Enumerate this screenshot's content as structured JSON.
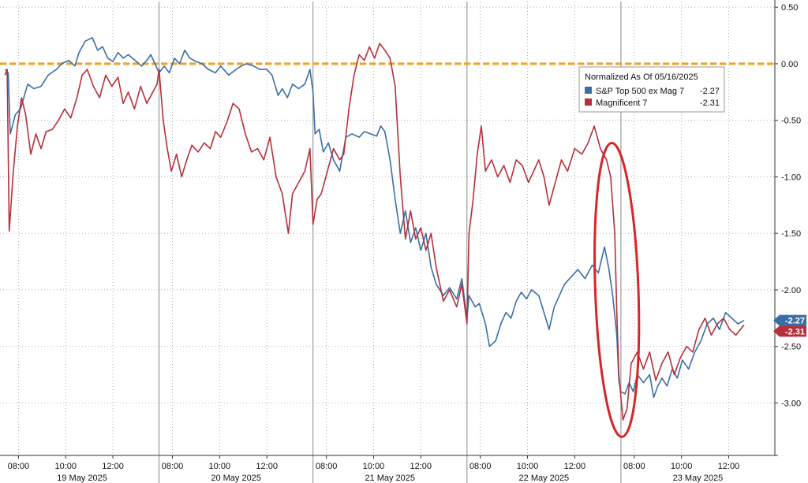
{
  "chart_data": {
    "type": "line",
    "title": "",
    "xlabel": "",
    "ylabel": "",
    "ylim": [
      -3.45,
      0.55
    ],
    "y_ticks": [
      0.5,
      0.0,
      -0.5,
      -1.0,
      -1.5,
      -2.0,
      -2.5,
      -3.0
    ],
    "y_tick_labels": [
      "0.50",
      "0.00",
      "-0.50",
      "-1.00",
      "-1.50",
      "-2.00",
      "-2.50",
      "-3.00"
    ],
    "x_time_ticks": [
      {
        "label": "08:00",
        "t": 0.13
      },
      {
        "label": "10:00",
        "t": 0.59
      },
      {
        "label": "12:00",
        "t": 1.05
      },
      {
        "label": "08:00",
        "t": 1.63
      },
      {
        "label": "10:00",
        "t": 2.09
      },
      {
        "label": "12:00",
        "t": 2.55
      },
      {
        "label": "08:00",
        "t": 3.13
      },
      {
        "label": "10:00",
        "t": 3.59
      },
      {
        "label": "12:00",
        "t": 4.05
      },
      {
        "label": "08:00",
        "t": 4.63
      },
      {
        "label": "10:00",
        "t": 5.09
      },
      {
        "label": "12:00",
        "t": 5.55
      },
      {
        "label": "08:00",
        "t": 6.13
      },
      {
        "label": "10:00",
        "t": 6.59
      },
      {
        "label": "12:00",
        "t": 7.05
      }
    ],
    "days": [
      {
        "label": "19 May 2025",
        "start": 0.0,
        "end": 1.5
      },
      {
        "label": "20 May 2025",
        "start": 1.5,
        "end": 3.0
      },
      {
        "label": "21 May 2025",
        "start": 3.0,
        "end": 4.5
      },
      {
        "label": "22 May 2025",
        "start": 4.5,
        "end": 6.0
      },
      {
        "label": "23 May 2025",
        "start": 6.0,
        "end": 7.5
      }
    ],
    "x_range": [
      -0.05,
      7.5
    ],
    "grid": true,
    "legend_position": "top-right",
    "legend_title": "Normalized As Of 05/16/2025",
    "reference_line": {
      "value": 0.0,
      "color": "#f0a324"
    },
    "annotation": {
      "type": "ellipse",
      "t_center": 5.96,
      "y_center": -2.0,
      "t_radius": 0.21,
      "y_radius": 1.3,
      "color": "#d62728"
    },
    "series": [
      {
        "name": "S&P Top 500 ex Mag 7",
        "last_value_label": "-2.27",
        "color": "#3a6fa6",
        "points": [
          [
            0.0,
            -0.05
          ],
          [
            0.03,
            -0.08
          ],
          [
            0.05,
            -0.62
          ],
          [
            0.1,
            -0.45
          ],
          [
            0.15,
            -0.4
          ],
          [
            0.22,
            -0.18
          ],
          [
            0.28,
            -0.22
          ],
          [
            0.35,
            -0.2
          ],
          [
            0.42,
            -0.1
          ],
          [
            0.5,
            -0.05
          ],
          [
            0.55,
            0.0
          ],
          [
            0.62,
            0.03
          ],
          [
            0.68,
            -0.02
          ],
          [
            0.72,
            0.1
          ],
          [
            0.78,
            0.2
          ],
          [
            0.85,
            0.23
          ],
          [
            0.9,
            0.12
          ],
          [
            0.95,
            0.15
          ],
          [
            1.0,
            0.05
          ],
          [
            1.05,
            0.02
          ],
          [
            1.1,
            0.1
          ],
          [
            1.15,
            0.05
          ],
          [
            1.2,
            0.08
          ],
          [
            1.28,
            0.02
          ],
          [
            1.33,
            -0.02
          ],
          [
            1.38,
            0.03
          ],
          [
            1.42,
            0.08
          ],
          [
            1.46,
            0.0
          ],
          [
            1.5,
            -0.08
          ],
          [
            1.55,
            -0.02
          ],
          [
            1.6,
            -0.08
          ],
          [
            1.65,
            0.05
          ],
          [
            1.7,
            0.0
          ],
          [
            1.75,
            0.12
          ],
          [
            1.8,
            0.05
          ],
          [
            1.86,
            0.02
          ],
          [
            1.92,
            0.0
          ],
          [
            1.98,
            -0.05
          ],
          [
            2.05,
            -0.08
          ],
          [
            2.1,
            -0.02
          ],
          [
            2.18,
            -0.1
          ],
          [
            2.25,
            -0.05
          ],
          [
            2.3,
            -0.02
          ],
          [
            2.35,
            0.0
          ],
          [
            2.42,
            -0.02
          ],
          [
            2.48,
            -0.05
          ],
          [
            2.55,
            -0.05
          ],
          [
            2.6,
            -0.1
          ],
          [
            2.66,
            -0.28
          ],
          [
            2.7,
            -0.22
          ],
          [
            2.75,
            -0.3
          ],
          [
            2.8,
            -0.18
          ],
          [
            2.86,
            -0.22
          ],
          [
            2.92,
            -0.18
          ],
          [
            2.97,
            -0.05
          ],
          [
            3.0,
            -0.25
          ],
          [
            3.02,
            -0.62
          ],
          [
            3.06,
            -0.58
          ],
          [
            3.1,
            -0.78
          ],
          [
            3.15,
            -0.7
          ],
          [
            3.2,
            -0.85
          ],
          [
            3.26,
            -0.95
          ],
          [
            3.32,
            -0.65
          ],
          [
            3.38,
            -0.62
          ],
          [
            3.45,
            -0.65
          ],
          [
            3.5,
            -0.6
          ],
          [
            3.56,
            -0.62
          ],
          [
            3.62,
            -0.64
          ],
          [
            3.66,
            -0.55
          ],
          [
            3.7,
            -0.6
          ],
          [
            3.75,
            -0.85
          ],
          [
            3.8,
            -1.2
          ],
          [
            3.85,
            -1.5
          ],
          [
            3.9,
            -1.3
          ],
          [
            3.95,
            -1.58
          ],
          [
            4.0,
            -1.45
          ],
          [
            4.05,
            -1.65
          ],
          [
            4.1,
            -1.5
          ],
          [
            4.15,
            -1.8
          ],
          [
            4.2,
            -1.95
          ],
          [
            4.27,
            -2.05
          ],
          [
            4.33,
            -1.98
          ],
          [
            4.4,
            -2.08
          ],
          [
            4.45,
            -1.9
          ],
          [
            4.5,
            -2.25
          ],
          [
            4.52,
            -2.05
          ],
          [
            4.58,
            -2.15
          ],
          [
            4.62,
            -2.12
          ],
          [
            4.68,
            -2.3
          ],
          [
            4.72,
            -2.5
          ],
          [
            4.78,
            -2.45
          ],
          [
            4.83,
            -2.3
          ],
          [
            4.88,
            -2.2
          ],
          [
            4.93,
            -2.25
          ],
          [
            4.98,
            -2.1
          ],
          [
            5.03,
            -2.02
          ],
          [
            5.08,
            -2.08
          ],
          [
            5.13,
            -2.0
          ],
          [
            5.2,
            -2.05
          ],
          [
            5.25,
            -2.2
          ],
          [
            5.3,
            -2.35
          ],
          [
            5.35,
            -2.15
          ],
          [
            5.4,
            -2.05
          ],
          [
            5.45,
            -1.95
          ],
          [
            5.52,
            -1.88
          ],
          [
            5.58,
            -1.82
          ],
          [
            5.65,
            -1.9
          ],
          [
            5.72,
            -1.78
          ],
          [
            5.78,
            -1.85
          ],
          [
            5.84,
            -1.62
          ],
          [
            5.88,
            -1.8
          ],
          [
            5.92,
            -2.05
          ],
          [
            5.96,
            -2.4
          ],
          [
            5.98,
            -2.8
          ],
          [
            6.0,
            -2.9
          ],
          [
            6.04,
            -2.92
          ],
          [
            6.08,
            -2.82
          ],
          [
            6.12,
            -2.9
          ],
          [
            6.16,
            -2.75
          ],
          [
            6.22,
            -2.82
          ],
          [
            6.28,
            -2.75
          ],
          [
            6.32,
            -2.95
          ],
          [
            6.36,
            -2.85
          ],
          [
            6.4,
            -2.78
          ],
          [
            6.45,
            -2.85
          ],
          [
            6.5,
            -2.7
          ],
          [
            6.55,
            -2.78
          ],
          [
            6.6,
            -2.62
          ],
          [
            6.66,
            -2.7
          ],
          [
            6.72,
            -2.55
          ],
          [
            6.78,
            -2.45
          ],
          [
            6.84,
            -2.3
          ],
          [
            6.9,
            -2.25
          ],
          [
            6.96,
            -2.35
          ],
          [
            7.02,
            -2.2
          ],
          [
            7.08,
            -2.25
          ],
          [
            7.14,
            -2.3
          ],
          [
            7.2,
            -2.27
          ]
        ]
      },
      {
        "name": "Magnificent 7",
        "last_value_label": "-2.31",
        "color": "#b5303a",
        "points": [
          [
            0.0,
            -0.1
          ],
          [
            0.02,
            -0.05
          ],
          [
            0.04,
            -1.48
          ],
          [
            0.08,
            -0.95
          ],
          [
            0.12,
            -0.55
          ],
          [
            0.16,
            -0.3
          ],
          [
            0.2,
            -0.45
          ],
          [
            0.25,
            -0.8
          ],
          [
            0.3,
            -0.62
          ],
          [
            0.35,
            -0.75
          ],
          [
            0.4,
            -0.6
          ],
          [
            0.46,
            -0.58
          ],
          [
            0.52,
            -0.5
          ],
          [
            0.58,
            -0.4
          ],
          [
            0.64,
            -0.48
          ],
          [
            0.7,
            -0.3
          ],
          [
            0.75,
            -0.1
          ],
          [
            0.8,
            -0.05
          ],
          [
            0.86,
            -0.2
          ],
          [
            0.92,
            -0.3
          ],
          [
            0.98,
            -0.1
          ],
          [
            1.04,
            -0.2
          ],
          [
            1.1,
            -0.12
          ],
          [
            1.15,
            -0.35
          ],
          [
            1.2,
            -0.25
          ],
          [
            1.26,
            -0.4
          ],
          [
            1.32,
            -0.2
          ],
          [
            1.38,
            -0.35
          ],
          [
            1.44,
            -0.25
          ],
          [
            1.48,
            -0.18
          ],
          [
            1.5,
            -0.05
          ],
          [
            1.54,
            -0.5
          ],
          [
            1.58,
            -0.75
          ],
          [
            1.62,
            -0.95
          ],
          [
            1.67,
            -0.8
          ],
          [
            1.72,
            -1.0
          ],
          [
            1.77,
            -0.85
          ],
          [
            1.82,
            -0.72
          ],
          [
            1.88,
            -0.78
          ],
          [
            1.94,
            -0.7
          ],
          [
            2.0,
            -0.75
          ],
          [
            2.05,
            -0.6
          ],
          [
            2.1,
            -0.65
          ],
          [
            2.16,
            -0.52
          ],
          [
            2.22,
            -0.35
          ],
          [
            2.28,
            -0.4
          ],
          [
            2.34,
            -0.62
          ],
          [
            2.4,
            -0.78
          ],
          [
            2.46,
            -0.75
          ],
          [
            2.52,
            -0.85
          ],
          [
            2.58,
            -0.65
          ],
          [
            2.64,
            -1.0
          ],
          [
            2.7,
            -1.15
          ],
          [
            2.76,
            -1.5
          ],
          [
            2.8,
            -1.15
          ],
          [
            2.86,
            -1.05
          ],
          [
            2.92,
            -0.95
          ],
          [
            2.97,
            -0.75
          ],
          [
            3.0,
            -1.42
          ],
          [
            3.04,
            -1.2
          ],
          [
            3.08,
            -1.15
          ],
          [
            3.14,
            -0.95
          ],
          [
            3.2,
            -0.75
          ],
          [
            3.26,
            -0.85
          ],
          [
            3.3,
            -0.8
          ],
          [
            3.35,
            -0.4
          ],
          [
            3.4,
            -0.1
          ],
          [
            3.45,
            0.08
          ],
          [
            3.5,
            0.03
          ],
          [
            3.55,
            0.15
          ],
          [
            3.6,
            0.05
          ],
          [
            3.65,
            0.18
          ],
          [
            3.7,
            0.12
          ],
          [
            3.75,
            0.05
          ],
          [
            3.8,
            -0.2
          ],
          [
            3.85,
            -1.0
          ],
          [
            3.9,
            -1.55
          ],
          [
            3.95,
            -1.3
          ],
          [
            4.0,
            -1.55
          ],
          [
            4.05,
            -1.45
          ],
          [
            4.1,
            -1.65
          ],
          [
            4.15,
            -1.5
          ],
          [
            4.2,
            -1.8
          ],
          [
            4.27,
            -2.1
          ],
          [
            4.33,
            -2.0
          ],
          [
            4.4,
            -2.15
          ],
          [
            4.45,
            -1.95
          ],
          [
            4.5,
            -2.3
          ],
          [
            4.52,
            -1.5
          ],
          [
            4.56,
            -1.2
          ],
          [
            4.6,
            -0.8
          ],
          [
            4.64,
            -0.55
          ],
          [
            4.68,
            -0.95
          ],
          [
            4.74,
            -0.85
          ],
          [
            4.8,
            -1.0
          ],
          [
            4.86,
            -0.9
          ],
          [
            4.92,
            -1.05
          ],
          [
            4.98,
            -0.85
          ],
          [
            5.04,
            -0.9
          ],
          [
            5.1,
            -1.05
          ],
          [
            5.15,
            -0.95
          ],
          [
            5.2,
            -0.85
          ],
          [
            5.25,
            -1.0
          ],
          [
            5.3,
            -1.25
          ],
          [
            5.36,
            -1.05
          ],
          [
            5.42,
            -0.85
          ],
          [
            5.48,
            -0.95
          ],
          [
            5.55,
            -0.75
          ],
          [
            5.62,
            -0.8
          ],
          [
            5.68,
            -0.7
          ],
          [
            5.74,
            -0.55
          ],
          [
            5.8,
            -0.75
          ],
          [
            5.86,
            -0.85
          ],
          [
            5.9,
            -1.0
          ],
          [
            5.94,
            -1.5
          ],
          [
            5.96,
            -2.2
          ],
          [
            5.98,
            -2.75
          ],
          [
            6.02,
            -3.15
          ],
          [
            6.06,
            -3.05
          ],
          [
            6.1,
            -2.65
          ],
          [
            6.16,
            -2.55
          ],
          [
            6.22,
            -2.7
          ],
          [
            6.28,
            -2.55
          ],
          [
            6.34,
            -2.8
          ],
          [
            6.4,
            -2.65
          ],
          [
            6.46,
            -2.55
          ],
          [
            6.52,
            -2.75
          ],
          [
            6.58,
            -2.6
          ],
          [
            6.64,
            -2.5
          ],
          [
            6.7,
            -2.55
          ],
          [
            6.76,
            -2.35
          ],
          [
            6.82,
            -2.25
          ],
          [
            6.88,
            -2.4
          ],
          [
            6.94,
            -2.3
          ],
          [
            7.0,
            -2.25
          ],
          [
            7.06,
            -2.35
          ],
          [
            7.12,
            -2.4
          ],
          [
            7.2,
            -2.31
          ]
        ]
      }
    ]
  }
}
